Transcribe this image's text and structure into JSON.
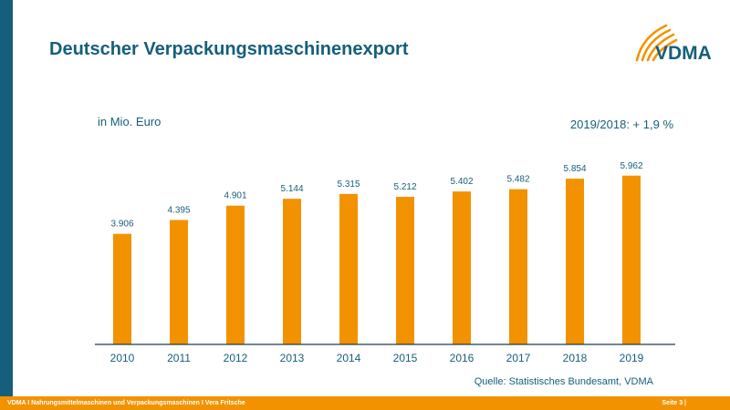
{
  "title": "Deutscher Verpackungsmaschinenexport",
  "logo_text": "VDMA",
  "unit_label": "in Mio. Euro",
  "change_label": "2019/2018: + 1,9 %",
  "source": "Quelle: Statistisches Bundesamt, VDMA",
  "footer": {
    "left": "VDMA I Nahrungsmittelmaschinen und Verpackungsmaschinen I Vera Fritsche",
    "right": "Seite 3 |"
  },
  "colors": {
    "brand_blue": "#155f7a",
    "accent_orange": "#f39200"
  },
  "chart_data": {
    "type": "bar",
    "title": "Deutscher Verpackungsmaschinenexport",
    "ylabel": "in Mio. Euro",
    "categories": [
      "2010",
      "2011",
      "2012",
      "2013",
      "2014",
      "2015",
      "2016",
      "2017",
      "2018",
      "2019"
    ],
    "values": [
      3906,
      4395,
      4901,
      5144,
      5315,
      5212,
      5402,
      5482,
      5854,
      5962
    ],
    "labels": [
      "3.906",
      "4.395",
      "4.901",
      "5.144",
      "5.315",
      "5.212",
      "5.402",
      "5.482",
      "5.854",
      "5.962"
    ],
    "ylim": [
      0,
      6244
    ],
    "grid": false,
    "legend": false
  }
}
